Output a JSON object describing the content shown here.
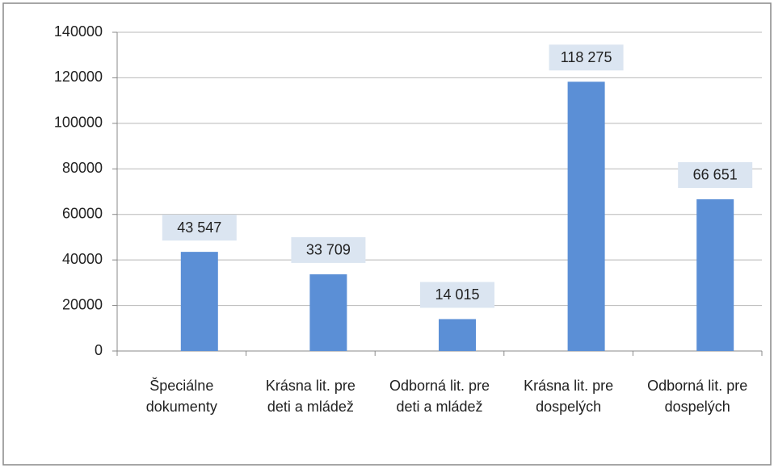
{
  "chart_data": {
    "type": "bar",
    "categories": [
      "Špeciálne dokumenty",
      "Krásna lit. pre deti a mládež",
      "Odborná lit. pre deti a mládež",
      "Krásna lit. pre dospelých",
      "Odborná lit. pre dospelých"
    ],
    "values": [
      43547,
      33709,
      14015,
      118275,
      66651
    ],
    "value_labels": [
      "43 547",
      "33 709",
      "14 015",
      "118 275",
      "66 651"
    ],
    "color": "#5b8fd6",
    "ylim": [
      0,
      140000
    ],
    "yticks": [
      0,
      20000,
      40000,
      60000,
      80000,
      100000,
      120000,
      140000
    ],
    "grid": true
  }
}
